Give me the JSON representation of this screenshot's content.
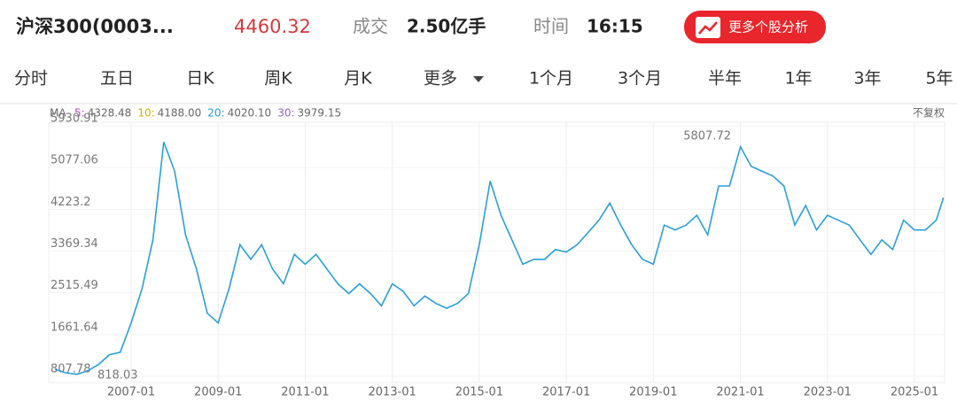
{
  "header": {
    "name": "沪深300(0003...",
    "price": "4460.32",
    "volume_label": "成交",
    "volume": "2.50亿手",
    "time_label": "时间",
    "time": "16:15",
    "button": "更多个股分析"
  },
  "tabs": [
    "分时",
    "五日",
    "日K",
    "周K",
    "月K",
    "更多",
    "1个月",
    "3个月",
    "半年",
    "1年",
    "3年",
    "5年"
  ],
  "ma": {
    "title": "MA",
    "items": [
      {
        "key": "5:",
        "value": "4328.48",
        "color": "#c03cc0"
      },
      {
        "key": "10:",
        "value": "4188.00",
        "color": "#d6b000"
      },
      {
        "key": "20:",
        "value": "4020.10",
        "color": "#1e9ad6"
      },
      {
        "key": "30:",
        "value": "3979.15",
        "color": "#8a64d0"
      }
    ],
    "adjust": "不复权"
  },
  "chart_data": {
    "type": "line",
    "color": "#2a9fd6",
    "grid": true,
    "high_label": "5807.72",
    "low_label": "818.03",
    "ylim": [
      807.78,
      5930.91
    ],
    "yticks": [
      {
        "value": 807.78,
        "label": "807.78"
      },
      1661.64,
      2515.49,
      3369.34,
      4223.2,
      5077.06,
      5930.91
    ],
    "xticks": [
      "2007-01",
      "2009-01",
      "2011-01",
      "2013-01",
      "2015-01",
      "2017-01",
      "2019-01",
      "2021-01",
      "2023-01",
      "2025-01"
    ],
    "x": [
      "2005-04",
      "2005-07",
      "2005-10",
      "2006-01",
      "2006-04",
      "2006-07",
      "2006-10",
      "2007-01",
      "2007-04",
      "2007-07",
      "2007-10",
      "2008-01",
      "2008-04",
      "2008-07",
      "2008-10",
      "2009-01",
      "2009-04",
      "2009-07",
      "2009-10",
      "2010-01",
      "2010-04",
      "2010-07",
      "2010-10",
      "2011-01",
      "2011-04",
      "2011-07",
      "2011-10",
      "2012-01",
      "2012-04",
      "2012-07",
      "2012-10",
      "2013-01",
      "2013-04",
      "2013-07",
      "2013-10",
      "2014-01",
      "2014-04",
      "2014-07",
      "2014-10",
      "2015-01",
      "2015-04",
      "2015-07",
      "2015-10",
      "2016-01",
      "2016-04",
      "2016-07",
      "2016-10",
      "2017-01",
      "2017-04",
      "2017-07",
      "2017-10",
      "2018-01",
      "2018-04",
      "2018-07",
      "2018-10",
      "2019-01",
      "2019-04",
      "2019-07",
      "2019-10",
      "2020-01",
      "2020-04",
      "2020-07",
      "2020-10",
      "2021-01",
      "2021-04",
      "2021-07",
      "2021-10",
      "2022-01",
      "2022-04",
      "2022-07",
      "2022-10",
      "2023-01",
      "2023-04",
      "2023-07",
      "2023-10",
      "2024-01",
      "2024-04",
      "2024-07",
      "2024-10",
      "2025-01",
      "2025-04",
      "2025-07",
      "2025-09"
    ],
    "values": [
      950,
      880,
      850,
      920,
      1050,
      1250,
      1300,
      1900,
      2600,
      3600,
      5600,
      5000,
      3700,
      3000,
      2100,
      1900,
      2600,
      3500,
      3200,
      3500,
      3000,
      2700,
      3300,
      3100,
      3300,
      3000,
      2700,
      2500,
      2700,
      2500,
      2250,
      2700,
      2550,
      2250,
      2450,
      2300,
      2200,
      2300,
      2500,
      3500,
      4800,
      4100,
      3600,
      3100,
      3200,
      3200,
      3400,
      3350,
      3500,
      3750,
      4000,
      4350,
      3900,
      3500,
      3200,
      3100,
      3900,
      3800,
      3900,
      4100,
      3700,
      4700,
      4700,
      5500,
      5100,
      5000,
      4900,
      4700,
      3900,
      4300,
      3800,
      4100,
      4000,
      3900,
      3600,
      3300,
      3600,
      3400,
      4000,
      3800,
      3800,
      4000,
      4460
    ]
  }
}
